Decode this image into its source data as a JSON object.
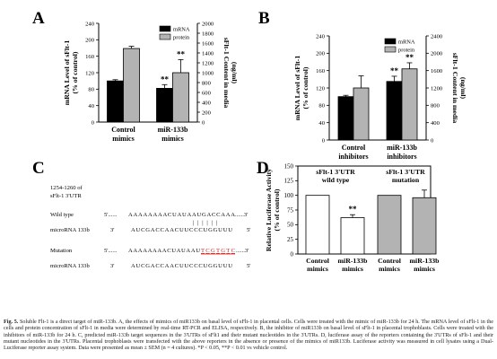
{
  "chart_data": [
    {
      "panel": "A",
      "type": "bar",
      "categories": [
        "Control mimics",
        "miR-133b mimics"
      ],
      "ylabel": "mRNA Level of sFlt-1 (% of control)",
      "ylabel_lines": [
        "mRNA Level of sFlt-1",
        "(% of control)"
      ],
      "y2label": "sFlt-1 Content in media (ng/ml)",
      "y2label_lines": [
        "sFlt-1 Content in media",
        "(ng/ml)"
      ],
      "ylim": [
        0,
        240
      ],
      "y2lim": [
        0,
        2000
      ],
      "yticks": [
        0,
        40,
        80,
        120,
        160,
        200,
        240
      ],
      "y2ticks": [
        0,
        200,
        400,
        600,
        800,
        1000,
        1200,
        1400,
        1600,
        1800,
        2000
      ],
      "legend": [
        "mRNA",
        "protein"
      ],
      "legend_position": "top-right",
      "series": [
        {
          "name": "mRNA",
          "axis": "left",
          "color": "#000000",
          "values": [
            100,
            82
          ],
          "errors": [
            3,
            9
          ],
          "sig": [
            "",
            "**"
          ]
        },
        {
          "name": "protein",
          "axis": "right",
          "color": "#b3b3b3",
          "values": [
            1490,
            1000
          ],
          "errors": [
            45,
            265
          ],
          "sig": [
            "",
            "**"
          ]
        }
      ]
    },
    {
      "panel": "B",
      "type": "bar",
      "categories": [
        "Control inhibitors",
        "miR-133b inhibitors"
      ],
      "ylabel": "mRNA Level of sFlt-1 (% of control)",
      "ylabel_lines": [
        "mRNA Level of sFlt-1",
        "(% of control)"
      ],
      "y2label": "sFlt-1 Content in media (ng/ml)",
      "y2label_lines": [
        "sFlt-1 Content in media",
        "(ng/ml)"
      ],
      "ylim": [
        0,
        240
      ],
      "y2lim": [
        0,
        2400
      ],
      "yticks": [
        0,
        40,
        80,
        120,
        160,
        200,
        240
      ],
      "y2ticks": [
        0,
        400,
        800,
        1200,
        1600,
        2000,
        2400
      ],
      "legend": [
        "mRNA",
        "protein"
      ],
      "legend_position": "top-right",
      "series": [
        {
          "name": "mRNA",
          "axis": "left",
          "color": "#000000",
          "values": [
            100,
            135
          ],
          "errors": [
            3,
            12
          ],
          "sig": [
            "",
            "**"
          ]
        },
        {
          "name": "protein",
          "axis": "right",
          "color": "#b3b3b3",
          "values": [
            1200,
            1640
          ],
          "errors": [
            280,
            140
          ],
          "sig": [
            "",
            "**"
          ]
        }
      ]
    },
    {
      "panel": "D",
      "type": "bar",
      "categories": [
        "Control mimics",
        "miR-133b mimics",
        "Control mimics",
        "miR-133b mimics"
      ],
      "ylabel": "Relative Luciferase Activity (% of control)",
      "ylabel_lines": [
        "Relative Luciferase Activity",
        "(% of control)"
      ],
      "ylim": [
        0,
        150
      ],
      "yticks": [
        0,
        25,
        50,
        75,
        100,
        125,
        150
      ],
      "group_labels": [
        [
          "sFlt-1 3'UTR",
          "wild type"
        ],
        [
          "sFlt-1 3'UTR",
          "mutation"
        ]
      ],
      "bar_colors": [
        "#ffffff",
        "#ffffff",
        "#b3b3b3",
        "#b3b3b3"
      ],
      "values": [
        100,
        62,
        100,
        96
      ],
      "errors": [
        0,
        5,
        0,
        13
      ],
      "sig": [
        "",
        "**",
        "",
        ""
      ]
    }
  ],
  "panels": {
    "a_label": "A",
    "b_label": "B",
    "c_label": "C",
    "d_label": "D"
  },
  "sequence_panel": {
    "header_1": "1254-1260 of",
    "header_2": "sFlt-1 3'UTR",
    "rows": [
      {
        "label": "Wild type",
        "end5": "5'......",
        "seq": "AAAAAAAACUAUAAUGACCAAA",
        "end3": "......3'"
      },
      {
        "label": "microRNA 133b",
        "end5": "3'",
        "seq": "AUCGACCAACUUCCCUGGUUU",
        "end3": "5'"
      },
      {
        "label": "Mutation",
        "end5": "5'......",
        "seq": "AAAAAAAACUAUAAU",
        "mut": "TCGTGTC",
        "end3": "......3'"
      },
      {
        "label": "microRNA 133b",
        "end5": "3'",
        "seq": "AUCGACCAACUUCCCUGGUUU",
        "end3": "5'"
      }
    ],
    "pairing": "||||||"
  },
  "caption": {
    "lead": "Fig. 5.",
    "text": "Soluble Flt-1 is a direct target of miR-133b. A, the effects of mimics of miR133b on basal level of sFlt-1 in placental cells. Cells were treated with the mimic of miR-133b for 24 h. The mRNA level of sFlt-1 in the cells and protein concentration of sFlt-1 in media were determined by real-time RT-PCR and ELISA, respectively. B, the inhibitor of miR133b on basal level of sFlt-1 in placental trophoblasts. Cells were treated with the inhibitors of miR-133b for 24 h. C, predicted miR-133b target sequences in the 3'UTRs of sFlt1 and their mutant nucleotides in the 3'UTRs. D, luciferase assay of the reporters containing the 3'UTRs of sFlt-1 and their mutant nucleotides in the 3'UTRs. Placental trophoblasts were transfected with the above reporters in the absence or presence of the mimics of miR133b. Luciferase activity was measured in cell lysates using a Dual-Luciferase reporter assay system. Data were presented as mean ± SEM (n = 4 cultures). *P < 0.05, **P < 0.01 vs vehicle control."
  }
}
